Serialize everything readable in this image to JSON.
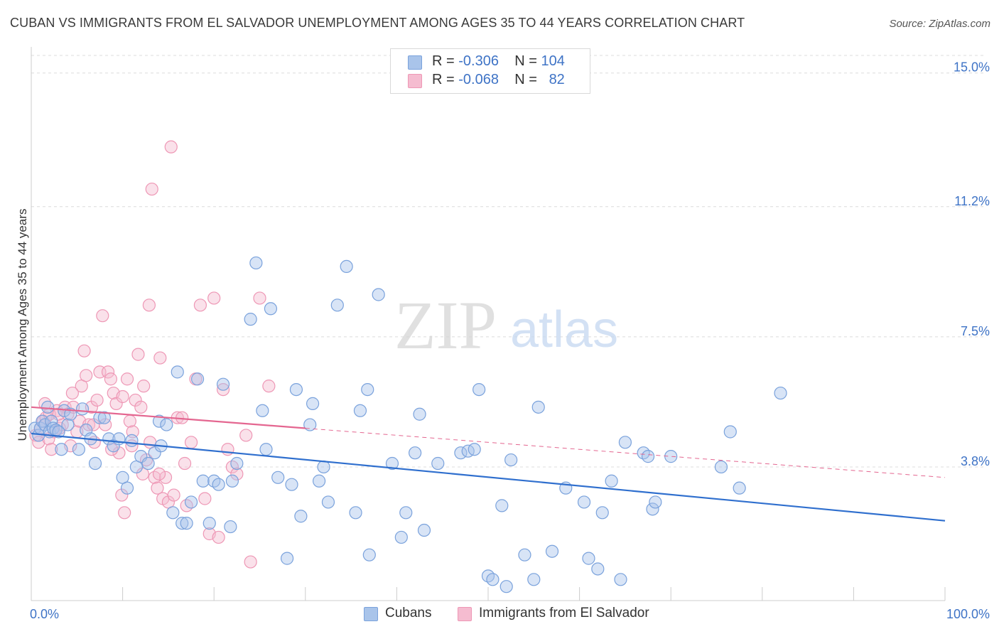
{
  "header": {
    "title": "CUBAN VS IMMIGRANTS FROM EL SALVADOR UNEMPLOYMENT AMONG AGES 35 TO 44 YEARS CORRELATION CHART",
    "source": "Source: ZipAtlas.com"
  },
  "watermark": {
    "zip": "ZIP",
    "atlas": "atlas"
  },
  "legend": {
    "rows": [
      {
        "r_label": "R =",
        "r_value": "-0.306",
        "n_label": "N =",
        "n_value": "104"
      },
      {
        "r_label": "R =",
        "r_value": "-0.068",
        "n_label": "N =",
        "n_value": "82"
      }
    ]
  },
  "bottom_legend": {
    "series1": "Cubans",
    "series2": "Immigrants from El Salvador"
  },
  "colors": {
    "blue_fill": "#a9c4ea",
    "blue_stroke": "#7aa2dc",
    "blue_line": "#2f6fce",
    "pink_fill": "#f5bcd0",
    "pink_stroke": "#ee97b5",
    "pink_line": "#e46690",
    "tick_label": "#3e73c6",
    "grid": "#dcdcdc"
  },
  "chart_data": {
    "type": "scatter",
    "xlabel": "",
    "ylabel": "Unemployment Among Ages 35 to 44 years",
    "xlim": [
      0,
      100
    ],
    "ylim": [
      0,
      15.5
    ],
    "x_tick_labels": [
      "0.0%",
      "100.0%"
    ],
    "y_ticks": [
      3.8,
      7.5,
      11.2,
      15.0
    ],
    "y_tick_labels": [
      "3.8%",
      "7.5%",
      "11.2%",
      "15.0%"
    ],
    "grid": "horizontal dashed",
    "legend_position": "top-center",
    "series": [
      {
        "name": "Cubans",
        "color": "#a9c4ea",
        "trend": {
          "x": [
            0,
            100
          ],
          "y": [
            4.75,
            2.27
          ]
        },
        "points": [
          [
            0.4,
            4.9
          ],
          [
            0.8,
            4.7
          ],
          [
            1.0,
            4.9
          ],
          [
            1.2,
            5.1
          ],
          [
            1.5,
            5.0
          ],
          [
            1.8,
            5.5
          ],
          [
            2.0,
            4.8
          ],
          [
            2.2,
            5.1
          ],
          [
            2.4,
            4.9
          ],
          [
            2.7,
            4.85
          ],
          [
            3.0,
            4.8
          ],
          [
            3.3,
            4.3
          ],
          [
            3.6,
            5.4
          ],
          [
            4.0,
            5.0
          ],
          [
            4.3,
            5.3
          ],
          [
            5.2,
            4.3
          ],
          [
            5.6,
            5.45
          ],
          [
            6.0,
            4.85
          ],
          [
            6.5,
            4.6
          ],
          [
            7.0,
            3.9
          ],
          [
            7.5,
            5.2
          ],
          [
            8.0,
            5.2
          ],
          [
            8.5,
            4.6
          ],
          [
            9.0,
            4.4
          ],
          [
            9.6,
            4.6
          ],
          [
            10.0,
            3.5
          ],
          [
            10.5,
            3.2
          ],
          [
            11.0,
            4.55
          ],
          [
            11.5,
            3.8
          ],
          [
            12.0,
            4.1
          ],
          [
            12.8,
            3.9
          ],
          [
            13.5,
            4.2
          ],
          [
            14.0,
            5.1
          ],
          [
            14.2,
            4.4
          ],
          [
            14.8,
            5.0
          ],
          [
            15.5,
            2.5
          ],
          [
            16.0,
            6.5
          ],
          [
            16.5,
            2.2
          ],
          [
            17.0,
            2.2
          ],
          [
            17.5,
            2.8
          ],
          [
            18.2,
            6.3
          ],
          [
            18.8,
            3.4
          ],
          [
            19.5,
            2.2
          ],
          [
            20.0,
            3.4
          ],
          [
            20.5,
            3.3
          ],
          [
            21.0,
            6.15
          ],
          [
            21.8,
            2.1
          ],
          [
            22.0,
            3.4
          ],
          [
            22.5,
            3.9
          ],
          [
            24.0,
            8.0
          ],
          [
            24.6,
            9.6
          ],
          [
            25.3,
            5.4
          ],
          [
            25.7,
            4.3
          ],
          [
            26.2,
            8.3
          ],
          [
            27.0,
            3.5
          ],
          [
            28.0,
            1.2
          ],
          [
            28.5,
            3.3
          ],
          [
            29.0,
            6.0
          ],
          [
            29.5,
            2.4
          ],
          [
            30.5,
            5.0
          ],
          [
            30.8,
            5.6
          ],
          [
            31.5,
            3.4
          ],
          [
            32.0,
            3.8
          ],
          [
            32.5,
            2.8
          ],
          [
            33.5,
            8.4
          ],
          [
            34.5,
            9.5
          ],
          [
            35.5,
            2.5
          ],
          [
            36.0,
            5.4
          ],
          [
            37.0,
            1.3
          ],
          [
            38.0,
            8.7
          ],
          [
            39.5,
            3.9
          ],
          [
            40.5,
            1.8
          ],
          [
            41.0,
            2.5
          ],
          [
            42.0,
            4.2
          ],
          [
            43.0,
            2.0
          ],
          [
            44.5,
            3.9
          ],
          [
            47.0,
            4.2
          ],
          [
            47.8,
            4.25
          ],
          [
            48.5,
            4.3
          ],
          [
            49.0,
            6.0
          ],
          [
            50.0,
            0.7
          ],
          [
            50.5,
            0.6
          ],
          [
            51.5,
            2.7
          ],
          [
            52.0,
            0.4
          ],
          [
            52.5,
            4.0
          ],
          [
            54.0,
            1.3
          ],
          [
            55.0,
            0.6
          ],
          [
            55.5,
            5.5
          ],
          [
            57.0,
            1.4
          ],
          [
            58.5,
            3.2
          ],
          [
            60.5,
            2.8
          ],
          [
            61.0,
            1.2
          ],
          [
            62.0,
            0.9
          ],
          [
            62.5,
            2.5
          ],
          [
            63.5,
            3.4
          ],
          [
            64.5,
            0.6
          ],
          [
            65.0,
            4.5
          ],
          [
            67.0,
            4.2
          ],
          [
            67.5,
            4.1
          ],
          [
            68.0,
            2.6
          ],
          [
            68.3,
            2.8
          ],
          [
            70.0,
            4.1
          ],
          [
            75.5,
            3.8
          ],
          [
            76.5,
            4.8
          ],
          [
            77.5,
            3.2
          ],
          [
            82.0,
            5.9
          ],
          [
            42.5,
            5.3
          ],
          [
            36.8,
            6.0
          ]
        ]
      },
      {
        "name": "Immigrants from El Salvador",
        "color": "#f5bcd0",
        "trend": {
          "x": [
            0,
            100
          ],
          "y": [
            5.5,
            3.5
          ]
        },
        "trend_solid_to": 30,
        "points": [
          [
            0.5,
            4.7
          ],
          [
            0.8,
            4.5
          ],
          [
            1.0,
            4.9
          ],
          [
            1.3,
            5.1
          ],
          [
            1.6,
            5.2
          ],
          [
            1.9,
            4.6
          ],
          [
            2.2,
            4.3
          ],
          [
            2.5,
            4.8
          ],
          [
            2.8,
            5.4
          ],
          [
            3.1,
            4.9
          ],
          [
            3.4,
            5.0
          ],
          [
            3.7,
            5.5
          ],
          [
            4.0,
            5.3
          ],
          [
            4.3,
            4.4
          ],
          [
            4.6,
            5.5
          ],
          [
            5.0,
            4.8
          ],
          [
            5.3,
            5.1
          ],
          [
            5.5,
            6.1
          ],
          [
            5.8,
            7.1
          ],
          [
            6.0,
            6.4
          ],
          [
            6.3,
            5.0
          ],
          [
            6.6,
            5.5
          ],
          [
            6.9,
            4.5
          ],
          [
            7.2,
            5.7
          ],
          [
            7.5,
            6.5
          ],
          [
            7.8,
            8.1
          ],
          [
            8.1,
            5.0
          ],
          [
            8.4,
            6.5
          ],
          [
            8.7,
            6.3
          ],
          [
            9.0,
            5.9
          ],
          [
            9.3,
            5.6
          ],
          [
            9.6,
            4.2
          ],
          [
            9.9,
            3.0
          ],
          [
            10.2,
            2.5
          ],
          [
            10.5,
            6.3
          ],
          [
            10.8,
            5.1
          ],
          [
            11.1,
            4.8
          ],
          [
            11.4,
            5.7
          ],
          [
            11.7,
            7.0
          ],
          [
            12.0,
            5.5
          ],
          [
            12.3,
            6.1
          ],
          [
            12.6,
            4.0
          ],
          [
            12.9,
            8.4
          ],
          [
            13.2,
            11.7
          ],
          [
            13.5,
            3.5
          ],
          [
            13.8,
            3.2
          ],
          [
            14.1,
            6.9
          ],
          [
            14.4,
            2.9
          ],
          [
            14.7,
            3.5
          ],
          [
            15.0,
            2.8
          ],
          [
            15.3,
            12.9
          ],
          [
            15.6,
            3.0
          ],
          [
            16.0,
            5.2
          ],
          [
            16.5,
            5.2
          ],
          [
            17.0,
            2.7
          ],
          [
            17.5,
            4.5
          ],
          [
            18.0,
            6.3
          ],
          [
            18.5,
            8.4
          ],
          [
            19.0,
            2.9
          ],
          [
            19.5,
            1.9
          ],
          [
            20.0,
            8.6
          ],
          [
            20.5,
            1.8
          ],
          [
            21.0,
            6.0
          ],
          [
            21.5,
            4.3
          ],
          [
            22.0,
            3.8
          ],
          [
            22.5,
            3.6
          ],
          [
            23.5,
            4.7
          ],
          [
            24.0,
            1.1
          ],
          [
            25.0,
            8.6
          ],
          [
            26.0,
            6.1
          ],
          [
            1.5,
            5.6
          ],
          [
            2.0,
            5.3
          ],
          [
            3.0,
            5.3
          ],
          [
            4.5,
            5.9
          ],
          [
            6.8,
            5.0
          ],
          [
            8.8,
            4.3
          ],
          [
            10.0,
            5.8
          ],
          [
            11.0,
            4.4
          ],
          [
            12.2,
            3.6
          ],
          [
            13.0,
            4.5
          ],
          [
            14.0,
            3.6
          ],
          [
            16.8,
            3.9
          ]
        ]
      }
    ]
  }
}
